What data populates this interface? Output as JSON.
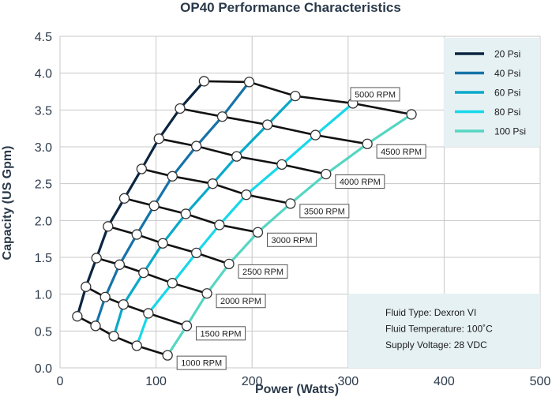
{
  "chart_data": {
    "type": "line",
    "title": "OP40 Performance Characteristics",
    "xlabel": "Power (Watts)",
    "ylabel": "Capacity (US Gpm)",
    "xlim": [
      0,
      500
    ],
    "ylim": [
      0,
      4.5
    ],
    "xticks": [
      "0",
      "100",
      "200",
      "300",
      "400",
      "500"
    ],
    "yticks": [
      "0.0",
      "0.5",
      "1.0",
      "1.5",
      "2.0",
      "2.5",
      "3.0",
      "3.5",
      "4.0",
      "4.5"
    ],
    "grid": true,
    "legend_position": "top-right",
    "rpm_labels": [
      "1000 RPM",
      "1500 RPM",
      "2000 RPM",
      "2500 RPM",
      "3000 RPM",
      "3500 RPM",
      "4000 RPM",
      "4500 RPM",
      "5000 RPM"
    ],
    "series": [
      {
        "name": "20 Psi",
        "color": "#0b2540",
        "points": [
          [
            18,
            0.7
          ],
          [
            27,
            1.1
          ],
          [
            38,
            1.49
          ],
          [
            50,
            1.92
          ],
          [
            67,
            2.3
          ],
          [
            85,
            2.7
          ],
          [
            103,
            3.11
          ],
          [
            125,
            3.52
          ],
          [
            150,
            3.89
          ]
        ]
      },
      {
        "name": "40 Psi",
        "color": "#1673a8",
        "points": [
          [
            37,
            0.57
          ],
          [
            47,
            0.96
          ],
          [
            62,
            1.4
          ],
          [
            80,
            1.81
          ],
          [
            98,
            2.2
          ],
          [
            117,
            2.6
          ],
          [
            142,
            3.01
          ],
          [
            169,
            3.41
          ],
          [
            197,
            3.88
          ]
        ]
      },
      {
        "name": "60 Psi",
        "color": "#0aa9c9",
        "points": [
          [
            56,
            0.43
          ],
          [
            66,
            0.86
          ],
          [
            87,
            1.29
          ],
          [
            107,
            1.69
          ],
          [
            131,
            2.09
          ],
          [
            159,
            2.5
          ],
          [
            184,
            2.87
          ],
          [
            216,
            3.3
          ],
          [
            245,
            3.69
          ]
        ]
      },
      {
        "name": "80 Psi",
        "color": "#17d8ea",
        "points": [
          [
            80,
            0.3
          ],
          [
            92,
            0.74
          ],
          [
            117,
            1.15
          ],
          [
            142,
            1.56
          ],
          [
            166,
            1.94
          ],
          [
            194,
            2.35
          ],
          [
            231,
            2.76
          ],
          [
            266,
            3.16
          ],
          [
            305,
            3.59
          ]
        ]
      },
      {
        "name": "100 Psi",
        "color": "#55d6c2",
        "points": [
          [
            112,
            0.17
          ],
          [
            132,
            0.57
          ],
          [
            153,
            1.01
          ],
          [
            176,
            1.41
          ],
          [
            206,
            1.84
          ],
          [
            240,
            2.23
          ],
          [
            277,
            2.63
          ],
          [
            320,
            3.04
          ],
          [
            366,
            3.44
          ]
        ]
      }
    ],
    "info": [
      "Fluid Type: Dexron VI",
      "Fluid Temperature: 100˚C",
      "Supply Voltage: 28 VDC"
    ]
  }
}
